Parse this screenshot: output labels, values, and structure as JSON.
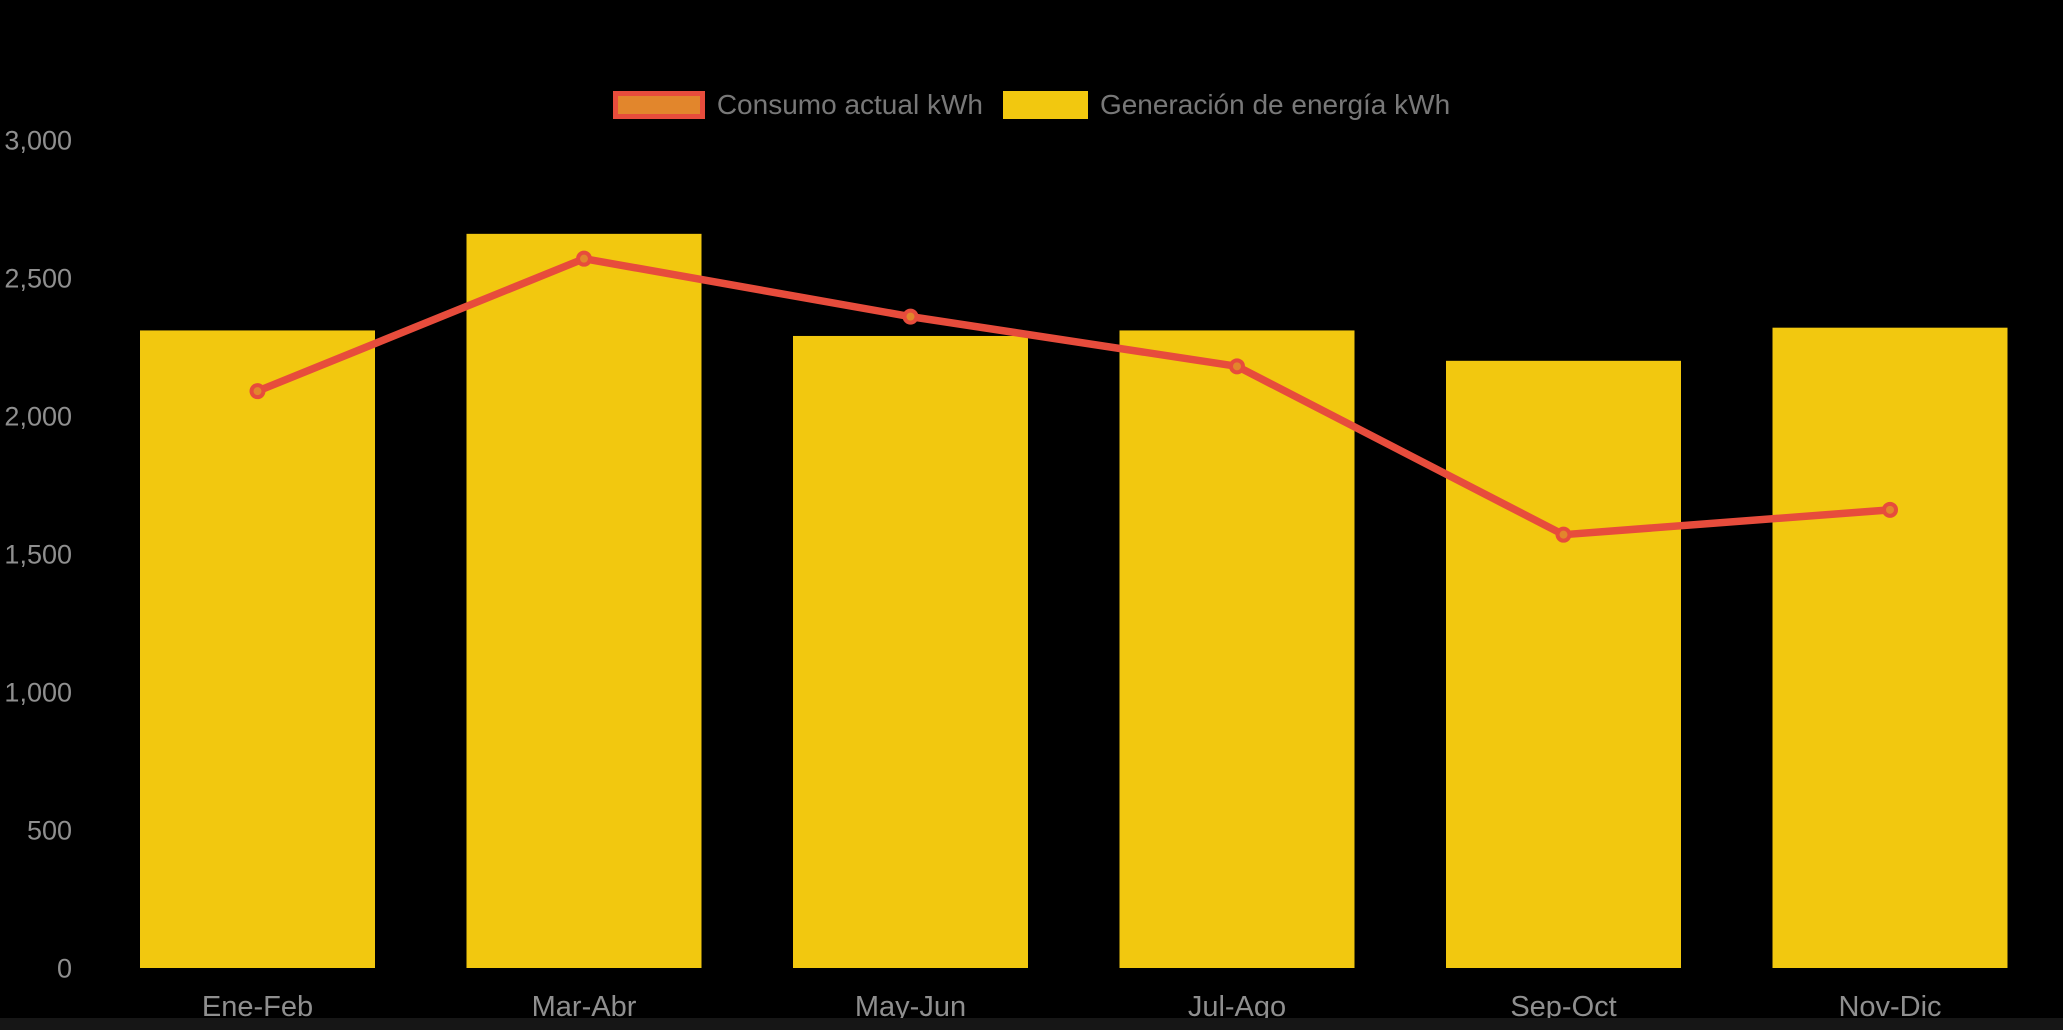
{
  "chart_data": {
    "type": "combo",
    "subtype": [
      "line",
      "bar"
    ],
    "categories": [
      "Ene-Feb",
      "Mar-Abr",
      "May-Jun",
      "Jul-Ago",
      "Sep-Oct",
      "Nov-Dic"
    ],
    "series": [
      {
        "name": "Consumo actual kWh",
        "type": "line",
        "values": [
          2090,
          2570,
          2360,
          2180,
          1570,
          1660
        ],
        "color": "#e74c3c",
        "marker_fill": "#e2862c"
      },
      {
        "name": "Generación de energía kWh",
        "type": "bar",
        "values": [
          2310,
          2660,
          2290,
          2310,
          2200,
          2320
        ],
        "color": "#f2c80f"
      }
    ],
    "ylim": [
      0,
      3000
    ],
    "y_ticks": [
      0,
      500,
      1000,
      1500,
      2000,
      2500,
      3000
    ],
    "y_tick_labels": [
      "0",
      "500",
      "1,000",
      "1,500",
      "2,000",
      "2,500",
      "3,000"
    ],
    "grid": false,
    "legend_position": "top-center",
    "background": "#000000",
    "axis_label_color": "#8f8f8f",
    "legend_text_color": "#787878"
  }
}
